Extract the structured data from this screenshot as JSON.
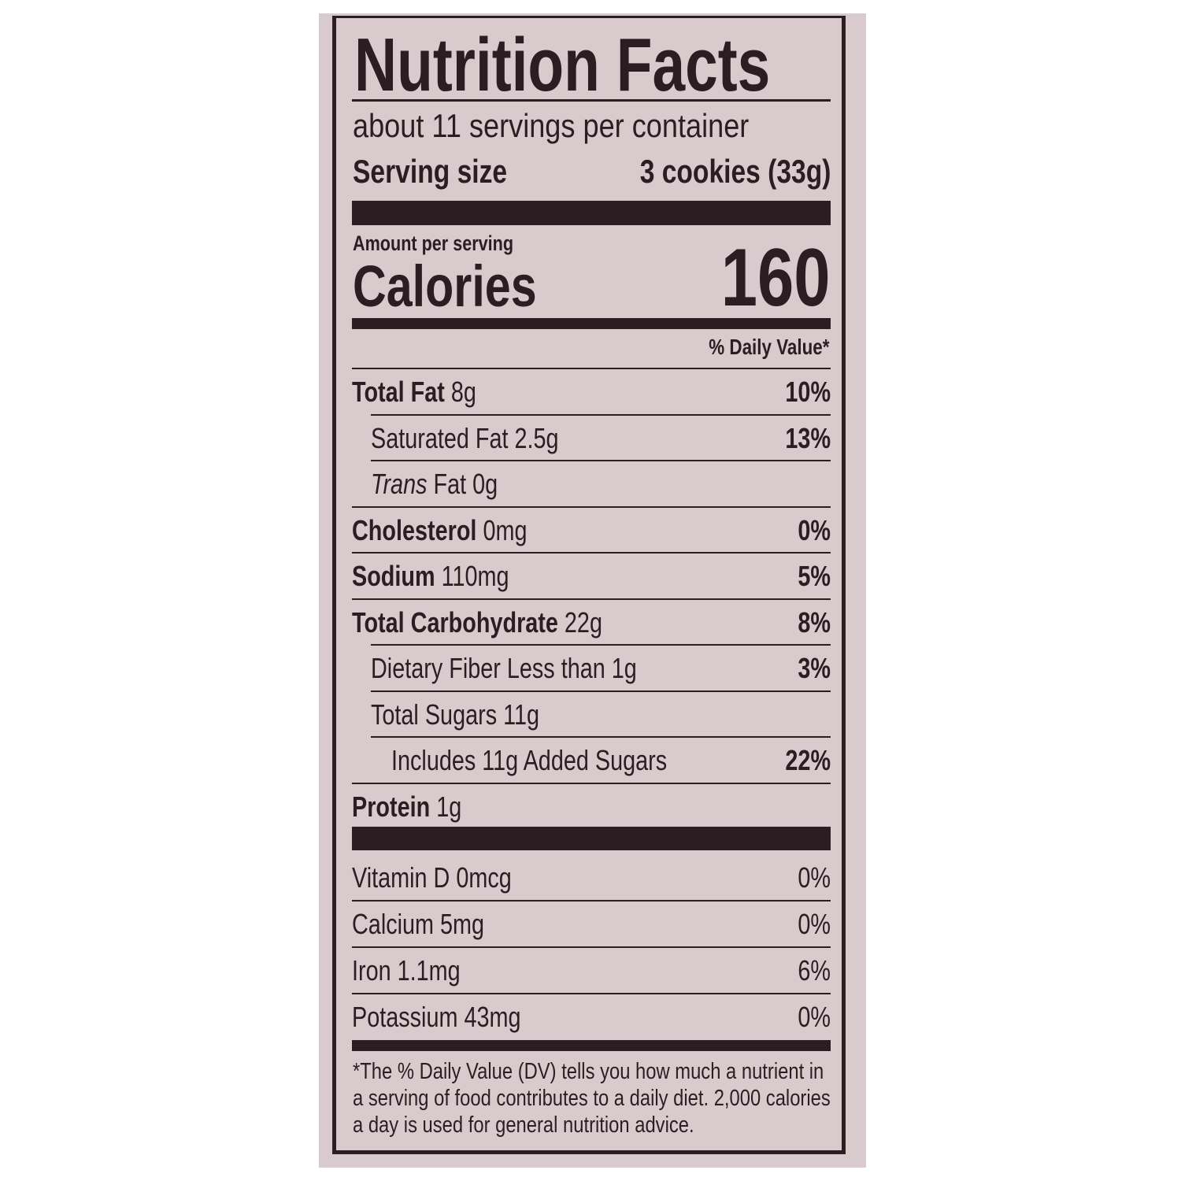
{
  "title": "Nutrition Facts",
  "servings_per_container": "about 11 servings per container",
  "serving_size_label": "Serving size",
  "serving_size_value": "3 cookies (33g)",
  "amount_per_serving": "Amount per serving",
  "calories_label": "Calories",
  "calories_value": "160",
  "daily_value_header": "% Daily Value*",
  "nutrients": [
    {
      "name": "Total Fat",
      "amount": "8g",
      "dv": "10%",
      "indent": 0,
      "bold": true
    },
    {
      "name": "Saturated Fat",
      "amount": "2.5g",
      "dv": "13%",
      "indent": 1,
      "bold": false
    },
    {
      "name": "Trans",
      "name_rest": "Fat",
      "amount": "0g",
      "dv": "",
      "indent": 1,
      "bold": false,
      "italic": true
    },
    {
      "name": "Cholesterol",
      "amount": "0mg",
      "dv": "0%",
      "indent": 0,
      "bold": true
    },
    {
      "name": "Sodium",
      "amount": "110mg",
      "dv": "5%",
      "indent": 0,
      "bold": true
    },
    {
      "name": "Total Carbohydrate",
      "amount": "22g",
      "dv": "8%",
      "indent": 0,
      "bold": true
    },
    {
      "name": "Dietary Fiber",
      "amount": "Less than 1g",
      "dv": "3%",
      "indent": 1,
      "bold": false
    },
    {
      "name": "Total Sugars",
      "amount": "11g",
      "dv": "",
      "indent": 1,
      "bold": false
    },
    {
      "name": "Includes 11g Added Sugars",
      "amount": "",
      "dv": "22%",
      "indent": 2,
      "bold": false
    },
    {
      "name": "Protein",
      "amount": "1g",
      "dv": "",
      "indent": 0,
      "bold": true
    }
  ],
  "vitamins": [
    {
      "name": "Vitamin D",
      "amount": "0mcg",
      "dv": "0%"
    },
    {
      "name": "Calcium",
      "amount": "5mg",
      "dv": "0%"
    },
    {
      "name": "Iron",
      "amount": "1.1mg",
      "dv": "6%"
    },
    {
      "name": "Potassium",
      "amount": "43mg",
      "dv": "0%"
    }
  ],
  "footnote": "*The % Daily Value (DV) tells you how much a nutrient in a serving of food contributes to a daily diet. 2,000 calories a day is used for general nutrition advice.",
  "colors": {
    "background": "#d8cacd",
    "ink": "#2a1e22"
  }
}
